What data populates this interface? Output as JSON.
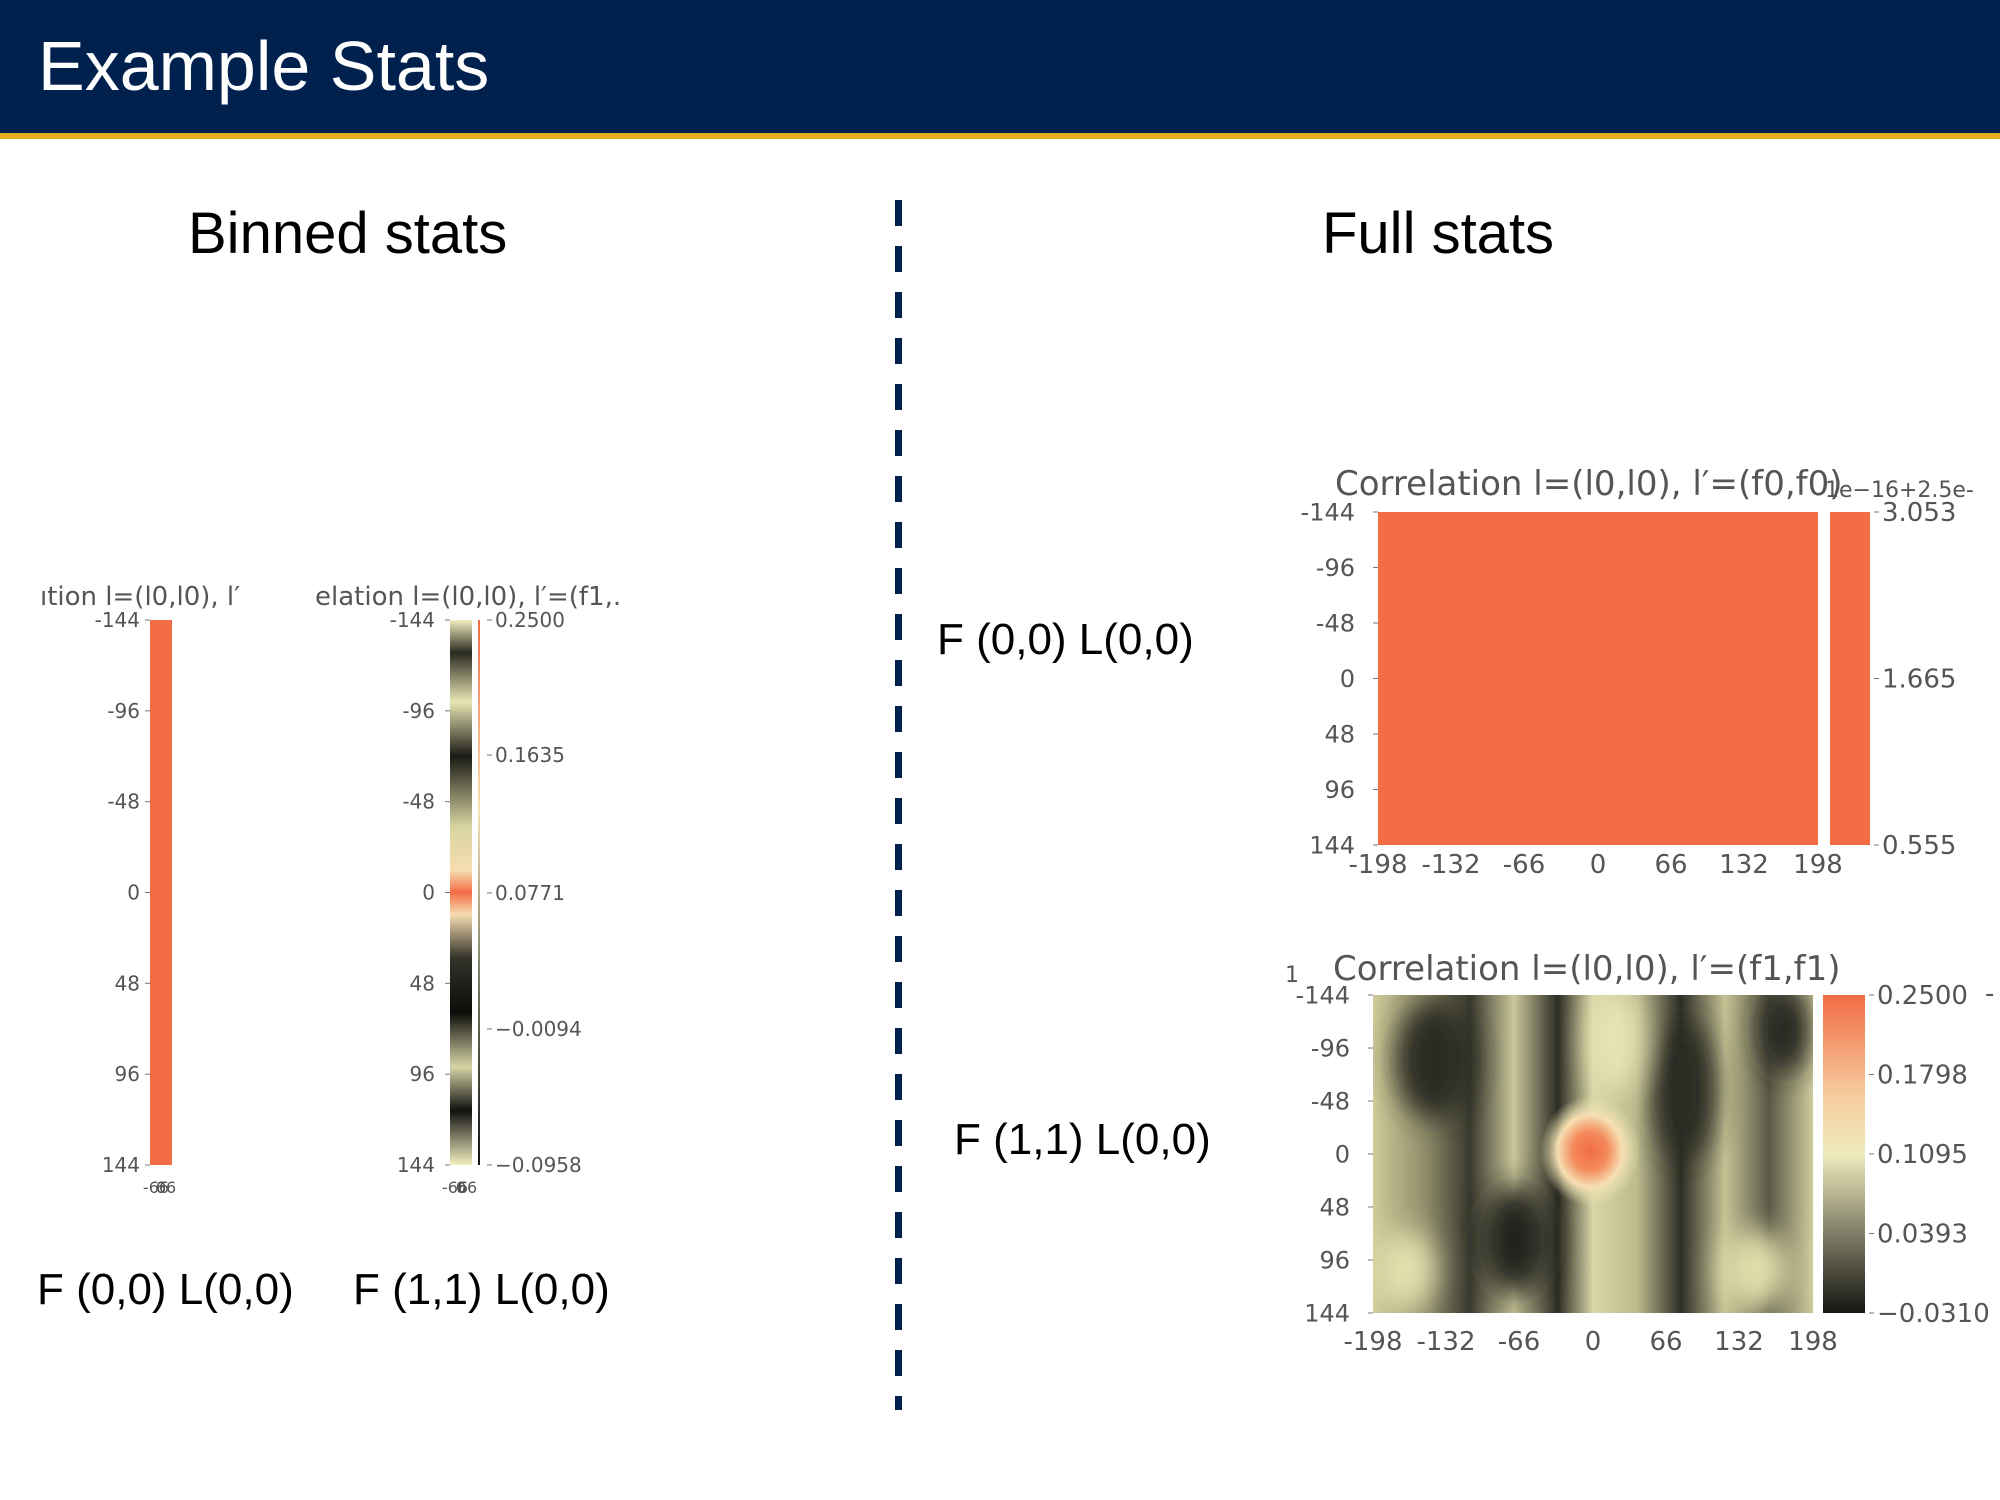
{
  "slide": {
    "title": "Example Stats",
    "left_heading": "Binned stats",
    "right_heading": "Full stats"
  },
  "captions": {
    "binned_1": "F (0,0) L(0,0)",
    "binned_2": "F (1,1) L(0,0)",
    "full_1": "F (0,0) L(0,0)",
    "full_2": "F (1,1) L(0,0)"
  },
  "colors": {
    "header_bg": "#00214d",
    "header_accent": "#e2ad1f",
    "heatmap_orange": "#f26c45"
  },
  "chart_data": [
    {
      "type": "heatmap",
      "title": "ıtion l=(l0,l0), l′",
      "y_ticks": [
        "-144",
        "-96",
        "-48",
        "0",
        "48",
        "96",
        "144"
      ],
      "x_ticks": [
        "-66",
        "0",
        "66"
      ],
      "colorbar_ticks": [],
      "appearance": "uniform orange"
    },
    {
      "type": "heatmap",
      "title": "elation l=(l0,l0), l′=(f1,.",
      "y_ticks": [
        "-144",
        "-96",
        "-48",
        "0",
        "48",
        "96",
        "144"
      ],
      "x_ticks": [
        "-66",
        "0",
        "66"
      ],
      "colorbar_ticks": [
        "0.2500",
        "0.1635",
        "0.0771",
        "−0.0094",
        "−0.0958"
      ],
      "appearance": "narrow strip, peak at center"
    },
    {
      "type": "heatmap",
      "title": "Correlation l=(l0,l0), l′=(f0,f0)",
      "colorbar_offset": "1e−16+2.5e-",
      "y_ticks": [
        "-144",
        "-96",
        "-48",
        "0",
        "48",
        "96",
        "144"
      ],
      "x_ticks": [
        "-198",
        "-132",
        "-66",
        "0",
        "66",
        "132",
        "198"
      ],
      "colorbar_ticks": [
        "3.053",
        "1.665",
        "0.555"
      ],
      "appearance": "uniform orange"
    },
    {
      "type": "heatmap",
      "title": "Correlation l=(l0,l0), l′=(f1,f1)",
      "corner_label": "1",
      "y_ticks": [
        "-144",
        "-96",
        "-48",
        "0",
        "48",
        "96",
        "144"
      ],
      "x_ticks": [
        "-198",
        "-132",
        "-66",
        "0",
        "66",
        "132",
        "198"
      ],
      "colorbar_ticks": [
        "0.2500",
        "0.1798",
        "0.1095",
        "0.0393",
        "−0.0310"
      ],
      "colorbar_edge_text": "-",
      "appearance": "peak at center (0,0)"
    }
  ]
}
